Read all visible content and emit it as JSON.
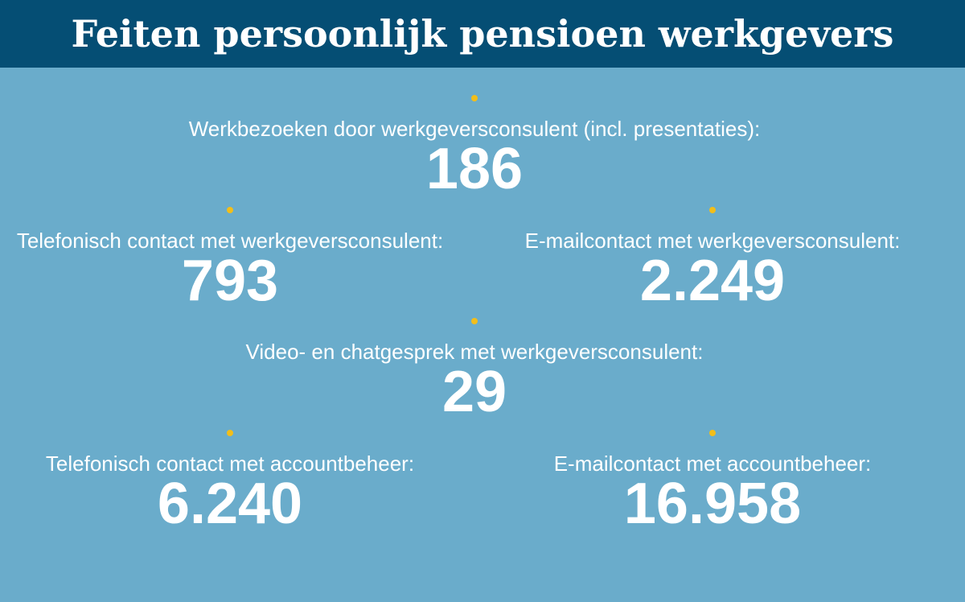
{
  "header": {
    "title": "Feiten persoonlijk pensioen werkgevers"
  },
  "colors": {
    "header_background": "#054e74",
    "body_background": "#6aaccb",
    "bullet": "#f2be1a",
    "text": "#ffffff"
  },
  "stats": [
    {
      "label": "Werkbezoeken door werkgeversconsulent (incl. presentaties):",
      "value": "186"
    },
    {
      "label": "Telefonisch contact met werkgeversconsulent:",
      "value": "793"
    },
    {
      "label": "E-mailcontact met werkgeversconsulent:",
      "value": "2.249"
    },
    {
      "label": "Video- en chatgesprek met werkgeversconsulent:",
      "value": "29"
    },
    {
      "label": "Telefonisch contact met accountbeheer:",
      "value": "6.240"
    },
    {
      "label": "E-mailcontact met accountbeheer:",
      "value": "16.958"
    }
  ]
}
